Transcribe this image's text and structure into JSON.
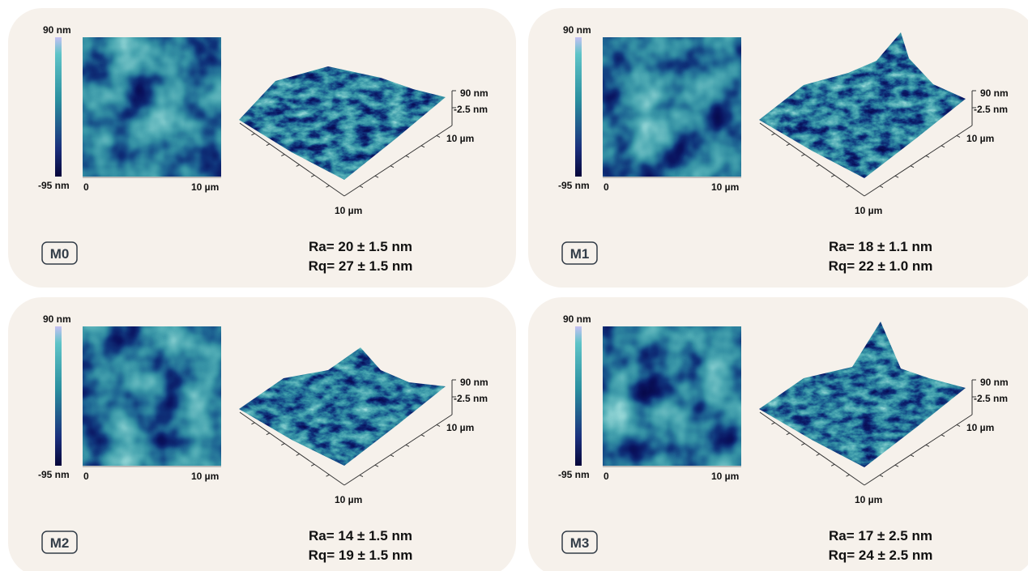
{
  "panels": [
    {
      "label": "M0",
      "colorbar": {
        "max": "90 nm",
        "min": "-95 nm"
      },
      "image_axis": {
        "start": "0",
        "end": "10 µm"
      },
      "surface_axis": {
        "z_max": "90 nm",
        "z_mid": "-2.5 nm",
        "x": "10 µm",
        "y": "10 µm"
      },
      "roughness": {
        "ra": "Ra= 20 ± 1.5 nm",
        "rq": "Rq= 27 ± 1.5 nm"
      }
    },
    {
      "label": "M1",
      "colorbar": {
        "max": "90 nm",
        "min": "-95 nm"
      },
      "image_axis": {
        "start": "0",
        "end": "10 µm"
      },
      "surface_axis": {
        "z_max": "90 nm",
        "z_mid": "-2.5 nm",
        "x": "10 µm",
        "y": "10 µm"
      },
      "roughness": {
        "ra": "Ra= 18 ± 1.1 nm",
        "rq": "Rq= 22 ± 1.0 nm"
      }
    },
    {
      "label": "M2",
      "colorbar": {
        "max": "90 nm",
        "min": "-95 nm"
      },
      "image_axis": {
        "start": "0",
        "end": "10 µm"
      },
      "surface_axis": {
        "z_max": "90 nm",
        "z_mid": "-2.5 nm",
        "x": "10 µm",
        "y": "10 µm"
      },
      "roughness": {
        "ra": "Ra= 14 ± 1.5 nm",
        "rq": "Rq= 19 ± 1.5 nm"
      }
    },
    {
      "label": "M3",
      "colorbar": {
        "max": "90 nm",
        "min": "-95 nm"
      },
      "image_axis": {
        "start": "0",
        "end": "10 µm"
      },
      "surface_axis": {
        "z_max": "90 nm",
        "z_mid": "-2.5 nm",
        "x": "10 µm",
        "y": "10 µm"
      },
      "roughness": {
        "ra": "Ra= 17 ± 2.5 nm",
        "rq": "Rq= 24 ± 2.5 nm"
      }
    }
  ]
}
